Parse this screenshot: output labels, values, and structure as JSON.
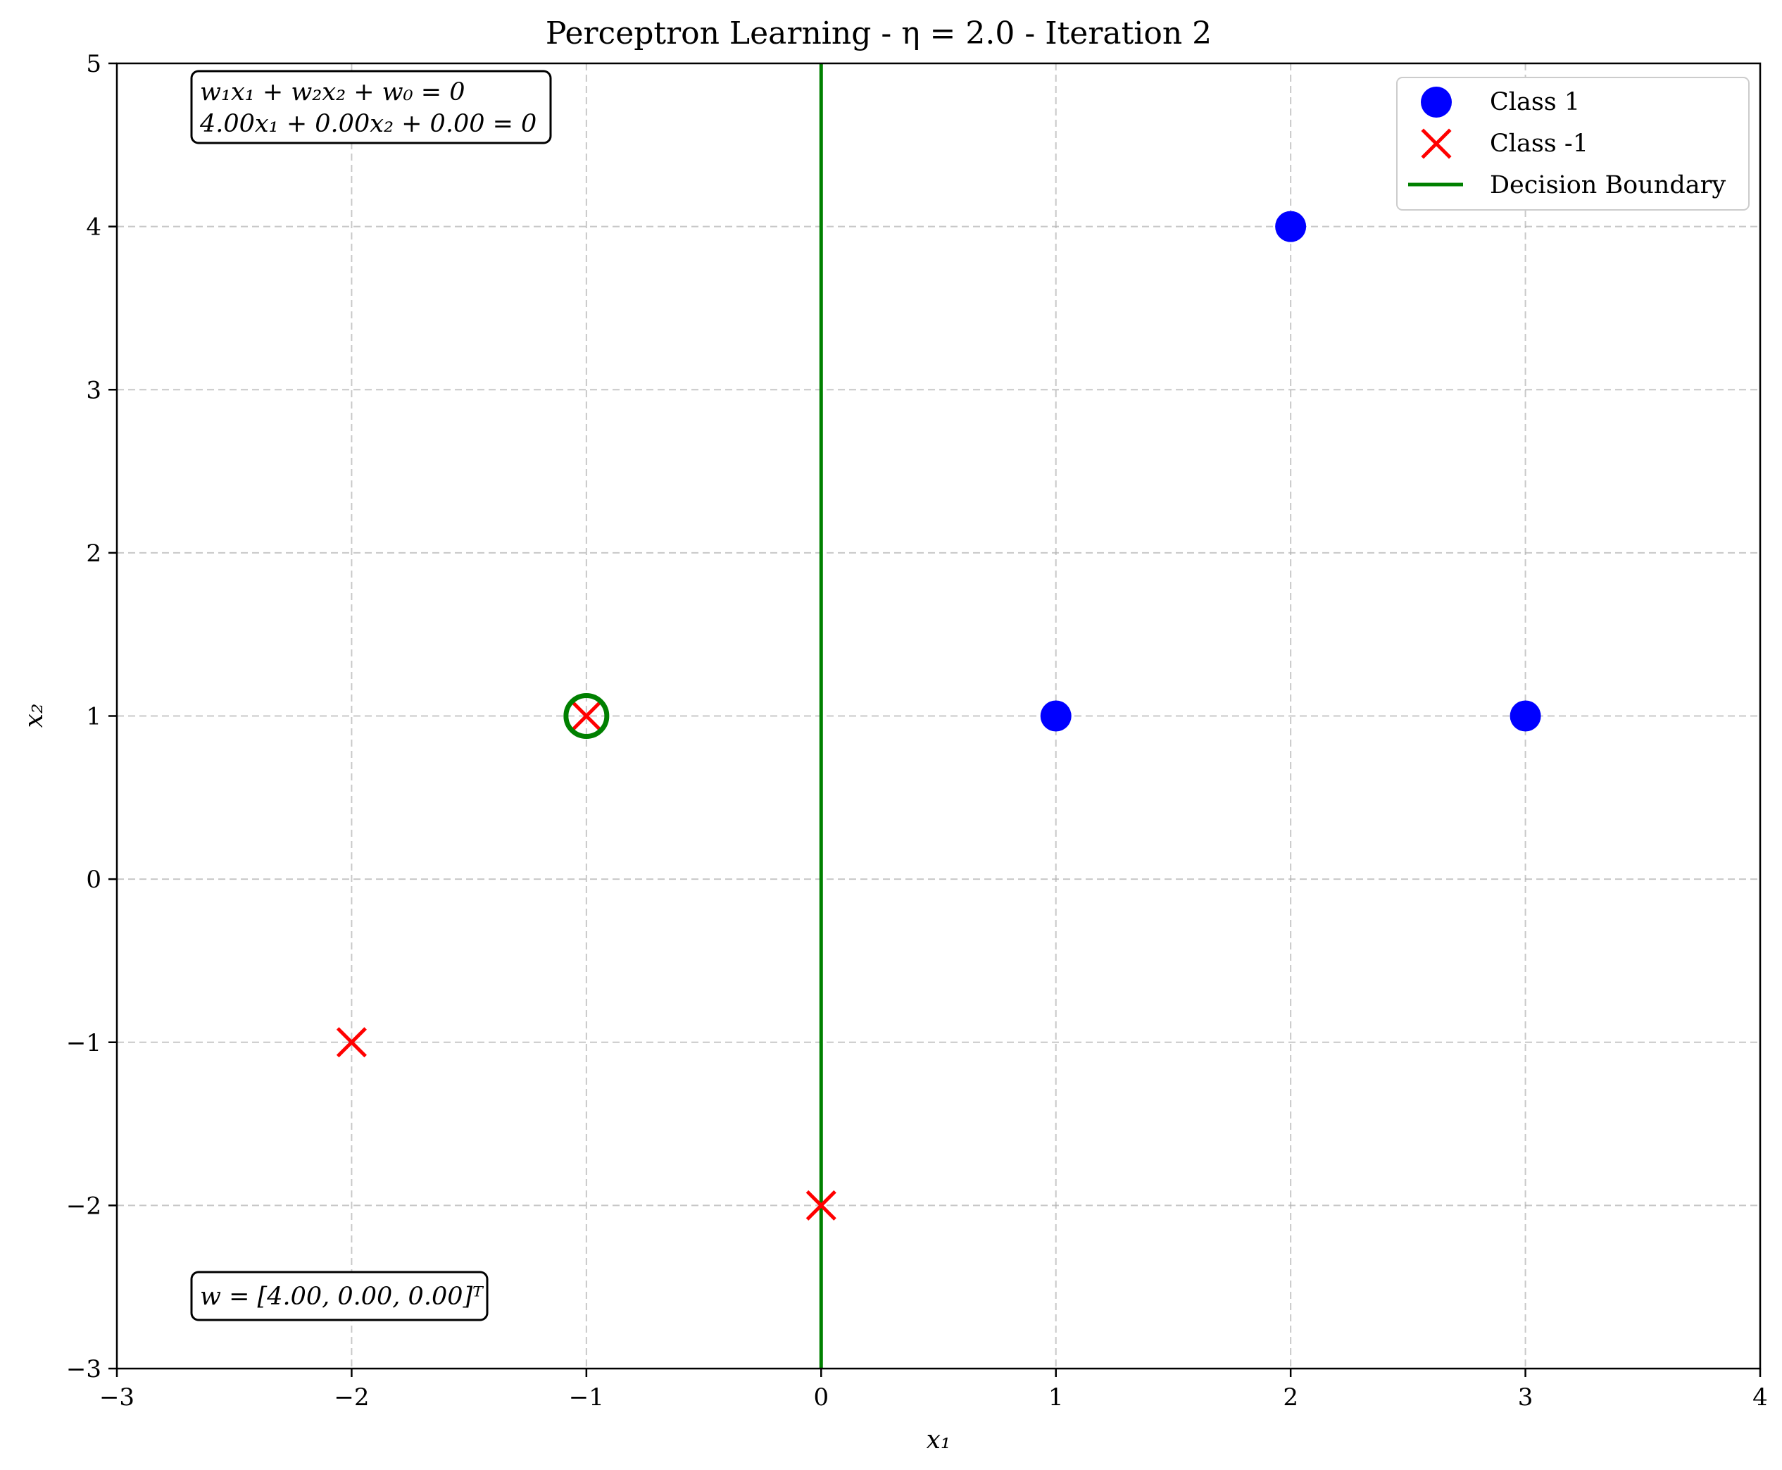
{
  "chart_data": {
    "type": "scatter",
    "title": "Perceptron Learning - η = 2.0 - Iteration 2",
    "xlabel": "x₁",
    "ylabel": "x₂",
    "xlim": [
      -3,
      4
    ],
    "ylim": [
      -3,
      5
    ],
    "xticks": [
      -3,
      -2,
      -1,
      0,
      1,
      2,
      3,
      4
    ],
    "yticks": [
      -3,
      -2,
      -1,
      0,
      1,
      2,
      3,
      4,
      5
    ],
    "xtick_labels": [
      "−3",
      "−2",
      "−1",
      "0",
      "1",
      "2",
      "3",
      "4"
    ],
    "ytick_labels": [
      "−3",
      "−2",
      "−1",
      "0",
      "1",
      "2",
      "3",
      "4",
      "5"
    ],
    "grid": true,
    "legend_position": "top-right",
    "series": [
      {
        "name": "Class 1",
        "marker": "circle",
        "color": "#0000ff",
        "points": [
          [
            2,
            4
          ],
          [
            1,
            1
          ],
          [
            3,
            1
          ]
        ]
      },
      {
        "name": "Class -1",
        "marker": "x",
        "color": "#ff0000",
        "points": [
          [
            -1,
            1
          ],
          [
            -2,
            -1
          ],
          [
            0,
            -2
          ]
        ]
      }
    ],
    "decision_boundary": {
      "name": "Decision Boundary",
      "color": "#008000",
      "x": 0
    },
    "highlighted_point": {
      "point": [
        -1,
        1
      ],
      "color": "#008000"
    },
    "annotations": {
      "equation_general": "w₁x₁ + w₂x₂ + w₀ = 0",
      "equation_current": "4.00x₁ + 0.00x₂ + 0.00 = 0",
      "weights": "w = [4.00, 0.00, 0.00]ᵀ"
    }
  }
}
